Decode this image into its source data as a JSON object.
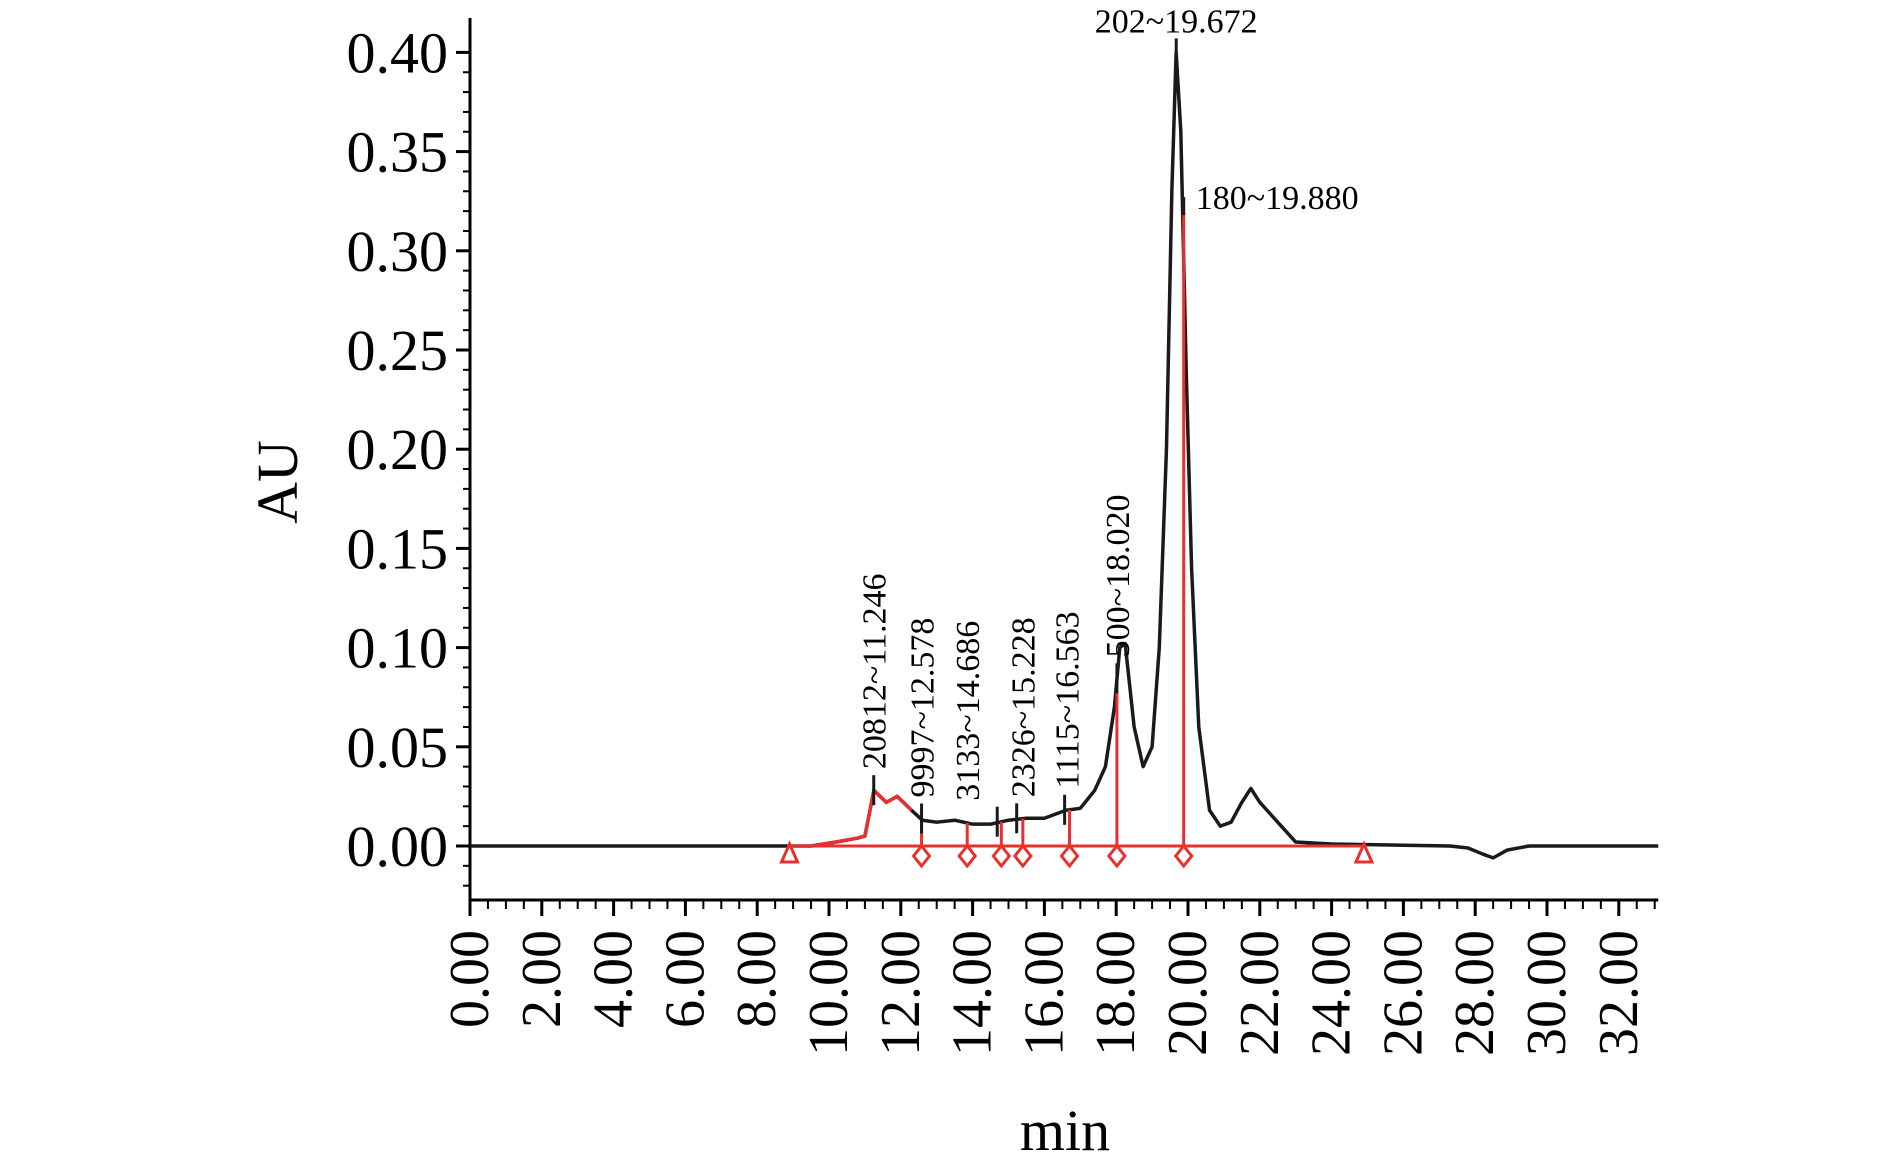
{
  "chart_data": {
    "type": "line",
    "title": "",
    "xlabel": "min",
    "ylabel": "AU",
    "xlim": [
      0,
      33.1
    ],
    "ylim": [
      -0.028,
      0.42
    ],
    "x_ticks": [
      "0.00",
      "2.00",
      "4.00",
      "6.00",
      "8.00",
      "10.00",
      "12.00",
      "14.00",
      "16.00",
      "18.00",
      "20.00",
      "22.00",
      "24.00",
      "26.00",
      "28.00",
      "30.00",
      "32.00"
    ],
    "y_ticks": [
      "0.00",
      "0.05",
      "0.10",
      "0.15",
      "0.20",
      "0.25",
      "0.30",
      "0.35",
      "0.40"
    ],
    "colors": {
      "trace": "#1a1a1a",
      "integration": "#e8302e"
    },
    "series": [
      {
        "name": "chromatogram",
        "x": [
          0,
          8,
          9.5,
          10.2,
          10.8,
          11.0,
          11.25,
          11.6,
          11.9,
          12.3,
          12.6,
          13.0,
          13.5,
          14.0,
          14.5,
          15.0,
          15.5,
          16.0,
          16.6,
          17.0,
          17.4,
          17.7,
          17.95,
          18.1,
          18.25,
          18.5,
          18.75,
          19.0,
          19.2,
          19.4,
          19.55,
          19.67,
          19.8,
          19.95,
          20.1,
          20.3,
          20.6,
          20.9,
          21.2,
          21.5,
          21.75,
          22.0,
          22.3,
          22.6,
          23.0,
          24,
          27.3,
          27.8,
          28.2,
          28.5,
          28.9,
          29.5,
          33.1
        ],
        "y": [
          0,
          0,
          0,
          0.002,
          0.004,
          0.005,
          0.028,
          0.022,
          0.025,
          0.018,
          0.013,
          0.012,
          0.013,
          0.011,
          0.011,
          0.013,
          0.014,
          0.014,
          0.018,
          0.019,
          0.028,
          0.04,
          0.07,
          0.1,
          0.102,
          0.06,
          0.04,
          0.05,
          0.1,
          0.2,
          0.33,
          0.4,
          0.36,
          0.24,
          0.14,
          0.06,
          0.018,
          0.01,
          0.012,
          0.022,
          0.029,
          0.022,
          0.016,
          0.01,
          0.002,
          0.001,
          0,
          -0.001,
          -0.004,
          -0.006,
          -0.002,
          0,
          0
        ]
      },
      {
        "name": "integrated-region",
        "x_start": 8.9,
        "x_end": 12.578
      }
    ],
    "baseline": {
      "start": 8.9,
      "end": 24.9
    },
    "drop_lines": [
      12.578,
      13.85,
      14.8,
      15.4,
      16.7,
      18.02,
      19.88
    ],
    "annotations": [
      {
        "text": "20812~11.246",
        "x": 11.246,
        "rotated": true
      },
      {
        "text": "9997~12.578",
        "x": 12.578,
        "rotated": true
      },
      {
        "text": "3133~14.686",
        "x": 14.686,
        "rotated": true
      },
      {
        "text": "2326~15.228",
        "x": 15.228,
        "rotated": true
      },
      {
        "text": "1115~16.563",
        "x": 16.563,
        "rotated": true
      },
      {
        "text": "500~18.020",
        "x": 18.02,
        "rotated": true
      },
      {
        "text": "202~19.672",
        "x": 19.672,
        "rotated": false
      },
      {
        "text": "180~19.880",
        "x": 19.88,
        "rotated": false
      }
    ],
    "grid": false,
    "legend": "none"
  }
}
